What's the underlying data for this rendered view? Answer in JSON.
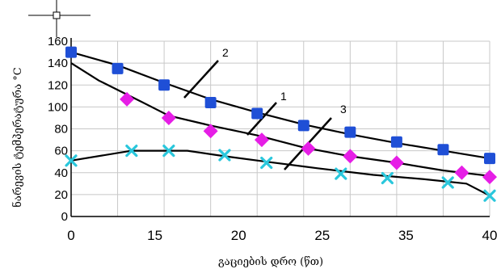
{
  "chart_data": {
    "type": "line",
    "xlabel": "გაციების დრო (წთ)",
    "ylabel": "ნარევის ტემპერატურა °C",
    "x_tick_labels": [
      "0",
      "15",
      "20",
      "25",
      "35",
      "40"
    ],
    "y_ticks": [
      0,
      20,
      40,
      60,
      80,
      100,
      120,
      140,
      160
    ],
    "ylim": [
      0,
      160
    ],
    "grid": true,
    "series": [
      {
        "name": "2",
        "marker": "square",
        "color": "#1f4fd6",
        "points": [
          [
            0,
            150
          ],
          [
            1,
            135
          ],
          [
            2,
            120
          ],
          [
            3,
            104
          ],
          [
            4,
            94
          ],
          [
            5,
            83
          ],
          [
            6,
            77
          ],
          [
            7,
            68
          ],
          [
            8,
            61
          ],
          [
            9,
            53
          ]
        ],
        "curve": [
          [
            0,
            150
          ],
          [
            1,
            138
          ],
          [
            2,
            122
          ],
          [
            3,
            107
          ],
          [
            4,
            95
          ],
          [
            5,
            84
          ],
          [
            6,
            75
          ],
          [
            7,
            67
          ],
          [
            8,
            60
          ],
          [
            9,
            53
          ]
        ]
      },
      {
        "name": "1",
        "marker": "diamond",
        "color": "#e61ee6",
        "points": [
          [
            1.2,
            107
          ],
          [
            2.1,
            90
          ],
          [
            3,
            78
          ],
          [
            4.1,
            70
          ],
          [
            5.1,
            62
          ],
          [
            6,
            55
          ],
          [
            7,
            49
          ],
          [
            8.4,
            40
          ],
          [
            9,
            36
          ]
        ],
        "curve": [
          [
            0,
            140
          ],
          [
            0.6,
            124
          ],
          [
            1.5,
            105
          ],
          [
            2.1,
            92
          ],
          [
            3,
            83
          ],
          [
            4,
            74
          ],
          [
            5,
            63
          ],
          [
            6,
            55
          ],
          [
            7,
            49
          ],
          [
            8,
            42
          ],
          [
            9,
            37
          ]
        ]
      },
      {
        "name": "3",
        "marker": "x",
        "color": "#2ac7dc",
        "points": [
          [
            0,
            51
          ],
          [
            1.3,
            60
          ],
          [
            2.1,
            60
          ],
          [
            3.3,
            56
          ],
          [
            4.2,
            49
          ],
          [
            5.8,
            39
          ],
          [
            6.8,
            35
          ],
          [
            8.1,
            31
          ],
          [
            9,
            19
          ]
        ],
        "curve": [
          [
            0,
            51
          ],
          [
            1.3,
            60
          ],
          [
            2.5,
            60
          ],
          [
            3.3,
            55
          ],
          [
            4.2,
            50
          ],
          [
            5.3,
            44
          ],
          [
            6.5,
            38
          ],
          [
            7.6,
            34
          ],
          [
            8.5,
            30
          ],
          [
            9,
            19
          ]
        ]
      }
    ]
  }
}
